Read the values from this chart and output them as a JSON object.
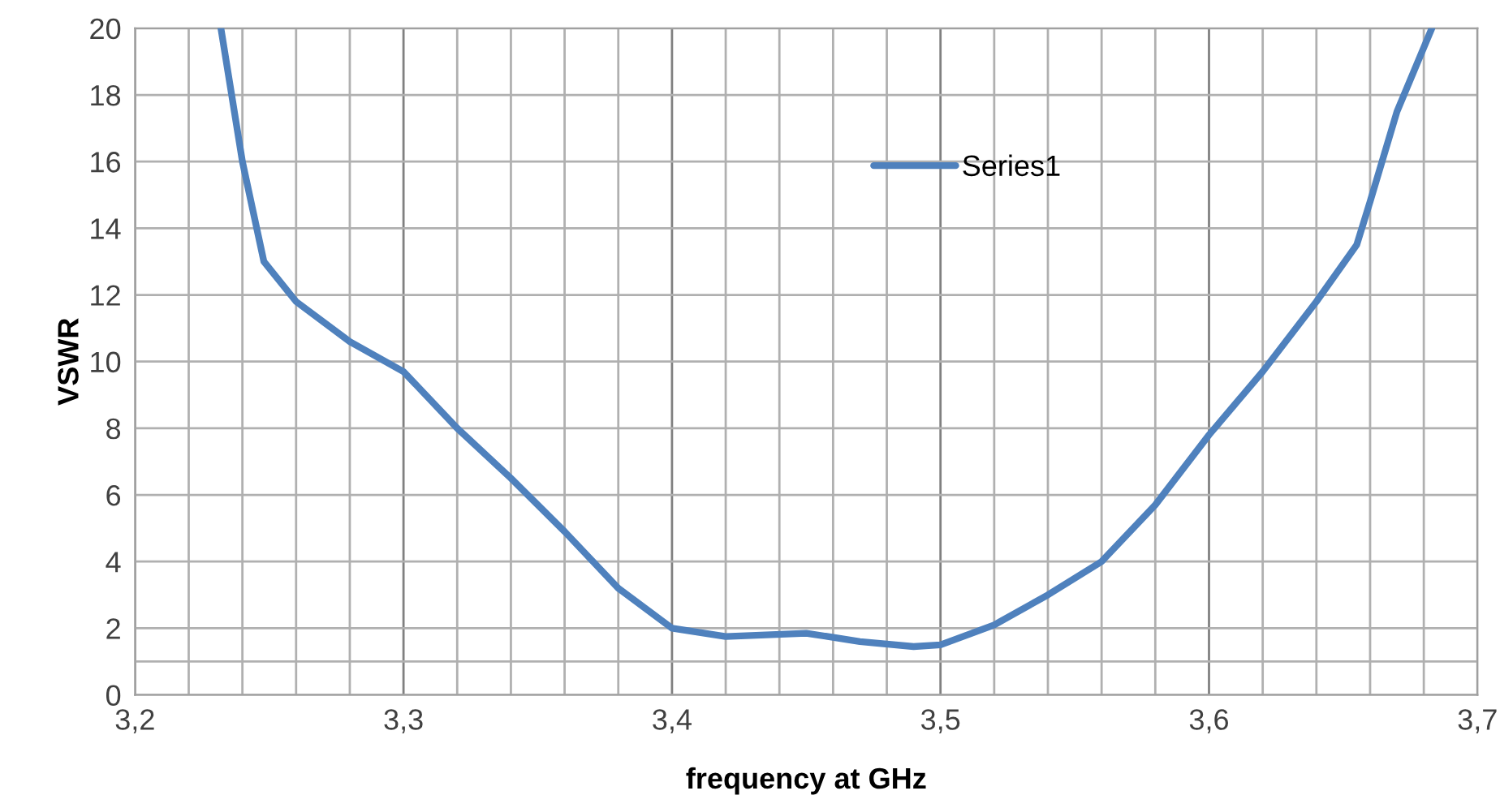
{
  "chart_data": {
    "type": "line",
    "xlabel": "frequency at GHz",
    "ylabel": "VSWR",
    "x": [
      3.232,
      3.24,
      3.248,
      3.26,
      3.28,
      3.3,
      3.32,
      3.34,
      3.36,
      3.38,
      3.4,
      3.42,
      3.45,
      3.47,
      3.49,
      3.5,
      3.52,
      3.54,
      3.56,
      3.58,
      3.6,
      3.62,
      3.64,
      3.655,
      3.66,
      3.67,
      3.683
    ],
    "series": [
      {
        "name": "Series1",
        "color": "#4f81bd",
        "values": [
          20,
          16,
          13,
          11.8,
          10.6,
          9.7,
          8,
          6.5,
          4.9,
          3.2,
          2.0,
          1.75,
          1.85,
          1.6,
          1.45,
          1.5,
          2.1,
          3.0,
          4.0,
          5.7,
          7.8,
          9.7,
          11.8,
          13.5,
          14.8,
          17.5,
          20
        ]
      }
    ],
    "xlim": [
      3.2,
      3.7
    ],
    "ylim": [
      0,
      20
    ],
    "xticks": [
      {
        "value": 3.2,
        "label": "3,2"
      },
      {
        "value": 3.22,
        "label": null
      },
      {
        "value": 3.24,
        "label": null
      },
      {
        "value": 3.26,
        "label": null
      },
      {
        "value": 3.28,
        "label": null
      },
      {
        "value": 3.3,
        "label": "3,3"
      },
      {
        "value": 3.32,
        "label": null
      },
      {
        "value": 3.34,
        "label": null
      },
      {
        "value": 3.36,
        "label": null
      },
      {
        "value": 3.38,
        "label": null
      },
      {
        "value": 3.4,
        "label": "3,4"
      },
      {
        "value": 3.42,
        "label": null
      },
      {
        "value": 3.44,
        "label": null
      },
      {
        "value": 3.46,
        "label": null
      },
      {
        "value": 3.48,
        "label": null
      },
      {
        "value": 3.5,
        "label": "3,5"
      },
      {
        "value": 3.52,
        "label": null
      },
      {
        "value": 3.54,
        "label": null
      },
      {
        "value": 3.56,
        "label": null
      },
      {
        "value": 3.58,
        "label": null
      },
      {
        "value": 3.6,
        "label": "3,6"
      },
      {
        "value": 3.62,
        "label": null
      },
      {
        "value": 3.64,
        "label": null
      },
      {
        "value": 3.66,
        "label": null
      },
      {
        "value": 3.68,
        "label": null
      },
      {
        "value": 3.7,
        "label": "3,7"
      }
    ],
    "yticks": [
      0,
      {
        "value": 1,
        "label": null
      },
      2,
      4,
      6,
      8,
      10,
      12,
      14,
      16,
      18,
      20
    ],
    "grid": true,
    "legend": "top",
    "marker": "none",
    "line_style": "solid"
  }
}
